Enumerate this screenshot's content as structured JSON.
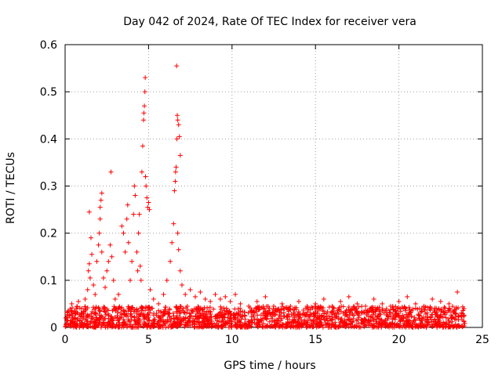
{
  "chart_data": {
    "type": "scatter",
    "title": "Day 042 of 2024, Rate Of TEC Index for receiver vera",
    "xlabel": "GPS time / hours",
    "ylabel": "ROTI / TECUs",
    "xlim": [
      0,
      25
    ],
    "ylim": [
      0,
      0.6
    ],
    "xticks": [
      0,
      5,
      10,
      15,
      20,
      25
    ],
    "xtick_labels": [
      "0",
      "5",
      "10",
      "15",
      "20",
      "25"
    ],
    "yticks": [
      0,
      0.1,
      0.2,
      0.3,
      0.4,
      0.5,
      0.6
    ],
    "ytick_labels": [
      "0",
      "0.1",
      "0.2",
      "0.3",
      "0.4",
      "0.5",
      "0.6"
    ],
    "grid": true,
    "marker": "plus",
    "color": "#ff0000",
    "series": [
      {
        "name": "ROTI",
        "points": [
          [
            0.05,
            0.02
          ],
          [
            0.2,
            0.035
          ],
          [
            0.4,
            0.05
          ],
          [
            0.6,
            0.03
          ],
          [
            0.8,
            0.055
          ],
          [
            1.0,
            0.04
          ],
          [
            1.2,
            0.06
          ],
          [
            1.35,
            0.08
          ],
          [
            1.4,
            0.12
          ],
          [
            1.45,
            0.135
          ],
          [
            1.5,
            0.105
          ],
          [
            1.55,
            0.19
          ],
          [
            1.45,
            0.245
          ],
          [
            1.6,
            0.155
          ],
          [
            1.7,
            0.09
          ],
          [
            1.8,
            0.07
          ],
          [
            1.9,
            0.14
          ],
          [
            2.0,
            0.175
          ],
          [
            2.05,
            0.2
          ],
          [
            2.1,
            0.23
          ],
          [
            2.15,
            0.27
          ],
          [
            2.2,
            0.285
          ],
          [
            2.1,
            0.255
          ],
          [
            2.2,
            0.16
          ],
          [
            2.3,
            0.105
          ],
          [
            2.4,
            0.085
          ],
          [
            2.5,
            0.12
          ],
          [
            2.6,
            0.14
          ],
          [
            2.7,
            0.175
          ],
          [
            2.75,
            0.33
          ],
          [
            2.8,
            0.15
          ],
          [
            2.9,
            0.1
          ],
          [
            3.0,
            0.06
          ],
          [
            3.2,
            0.07
          ],
          [
            3.4,
            0.215
          ],
          [
            3.5,
            0.2
          ],
          [
            3.6,
            0.16
          ],
          [
            3.7,
            0.23
          ],
          [
            3.75,
            0.26
          ],
          [
            3.8,
            0.18
          ],
          [
            3.9,
            0.1
          ],
          [
            4.0,
            0.14
          ],
          [
            4.1,
            0.24
          ],
          [
            4.15,
            0.3
          ],
          [
            4.2,
            0.28
          ],
          [
            4.3,
            0.16
          ],
          [
            4.35,
            0.12
          ],
          [
            4.4,
            0.2
          ],
          [
            4.45,
            0.24
          ],
          [
            4.5,
            0.13
          ],
          [
            4.55,
            0.1
          ],
          [
            4.6,
            0.33
          ],
          [
            4.65,
            0.385
          ],
          [
            4.7,
            0.44
          ],
          [
            4.72,
            0.455
          ],
          [
            4.75,
            0.47
          ],
          [
            4.78,
            0.5
          ],
          [
            4.8,
            0.53
          ],
          [
            4.82,
            0.32
          ],
          [
            4.85,
            0.3
          ],
          [
            4.9,
            0.275
          ],
          [
            4.95,
            0.255
          ],
          [
            5.0,
            0.265
          ],
          [
            5.05,
            0.25
          ],
          [
            5.1,
            0.08
          ],
          [
            5.3,
            0.06
          ],
          [
            5.6,
            0.05
          ],
          [
            5.9,
            0.07
          ],
          [
            6.1,
            0.1
          ],
          [
            6.3,
            0.14
          ],
          [
            6.4,
            0.18
          ],
          [
            6.5,
            0.22
          ],
          [
            6.55,
            0.29
          ],
          [
            6.6,
            0.31
          ],
          [
            6.62,
            0.33
          ],
          [
            6.65,
            0.34
          ],
          [
            6.7,
            0.4
          ],
          [
            6.72,
            0.45
          ],
          [
            6.75,
            0.44
          ],
          [
            6.8,
            0.43
          ],
          [
            6.85,
            0.405
          ],
          [
            6.9,
            0.365
          ],
          [
            6.68,
            0.555
          ],
          [
            6.75,
            0.2
          ],
          [
            6.8,
            0.165
          ],
          [
            6.9,
            0.12
          ],
          [
            7.0,
            0.09
          ],
          [
            7.2,
            0.07
          ],
          [
            7.5,
            0.08
          ],
          [
            7.8,
            0.065
          ],
          [
            8.1,
            0.075
          ],
          [
            8.4,
            0.06
          ],
          [
            8.7,
            0.055
          ],
          [
            9.0,
            0.07
          ],
          [
            9.3,
            0.06
          ],
          [
            9.6,
            0.065
          ],
          [
            9.9,
            0.055
          ],
          [
            10.2,
            0.07
          ],
          [
            10.5,
            0.05
          ],
          [
            11.0,
            0.045
          ],
          [
            11.5,
            0.055
          ],
          [
            12.0,
            0.065
          ],
          [
            12.5,
            0.045
          ],
          [
            13.0,
            0.05
          ],
          [
            13.5,
            0.045
          ],
          [
            14.0,
            0.055
          ],
          [
            14.5,
            0.045
          ],
          [
            15.0,
            0.05
          ],
          [
            15.5,
            0.06
          ],
          [
            16.0,
            0.045
          ],
          [
            16.5,
            0.055
          ],
          [
            17.0,
            0.065
          ],
          [
            17.5,
            0.05
          ],
          [
            18.0,
            0.045
          ],
          [
            18.5,
            0.06
          ],
          [
            19.0,
            0.05
          ],
          [
            19.5,
            0.045
          ],
          [
            20.0,
            0.055
          ],
          [
            20.5,
            0.065
          ],
          [
            21.0,
            0.05
          ],
          [
            21.5,
            0.045
          ],
          [
            22.0,
            0.06
          ],
          [
            22.5,
            0.055
          ],
          [
            23.0,
            0.05
          ],
          [
            23.5,
            0.075
          ],
          [
            23.9,
            0.04
          ]
        ]
      }
    ],
    "baseline_band": {
      "x_range": [
        0,
        24
      ],
      "y_range": [
        0.0,
        0.045
      ],
      "description_of_density": "dense band of points across the whole day"
    }
  }
}
